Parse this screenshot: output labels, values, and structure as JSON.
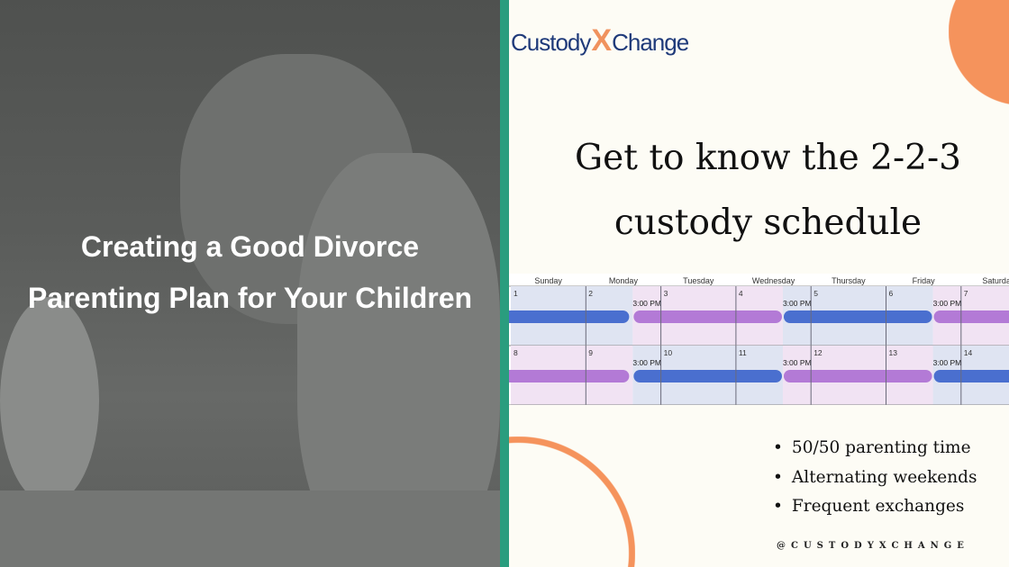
{
  "left_panel": {
    "title": "Creating a Good Divorce Parenting Plan for Your Children"
  },
  "logo": {
    "part1": "Custody",
    "x": "X",
    "part2": "Change"
  },
  "headline": "Get to know the 2-2-3 custody schedule",
  "calendar": {
    "days": [
      "Sunday",
      "Monday",
      "Tuesday",
      "Wednesday",
      "Thursday",
      "Friday",
      "Saturday"
    ],
    "exchange_label": "3:00 PM",
    "colors": {
      "parent_a": "#4a6fcf",
      "parent_b": "#b37ad6",
      "parent_a_bg": "#dfe4f2",
      "parent_b_bg": "#f1e3f3"
    },
    "weeks": [
      {
        "dates": [
          "1",
          "2",
          "3",
          "4",
          "5",
          "6",
          "7"
        ],
        "segments": [
          [
            "a",
            0,
            1.625
          ],
          [
            "b",
            1.625,
            3.625
          ],
          [
            "a",
            3.625,
            5.625
          ],
          [
            "b",
            5.625,
            7.5
          ]
        ]
      },
      {
        "dates": [
          "8",
          "9",
          "10",
          "11",
          "12",
          "13",
          "14"
        ],
        "segments": [
          [
            "b",
            0,
            1.625
          ],
          [
            "a",
            1.625,
            3.625
          ],
          [
            "b",
            3.625,
            5.625
          ],
          [
            "a",
            5.625,
            7.5
          ]
        ]
      }
    ]
  },
  "bullets": [
    "50/50 parenting time",
    "Alternating weekends",
    "Frequent exchanges"
  ],
  "handle": "@CUSTODYXCHANGE",
  "accent": "#f0925e",
  "strip_color": "#2a9d7e"
}
